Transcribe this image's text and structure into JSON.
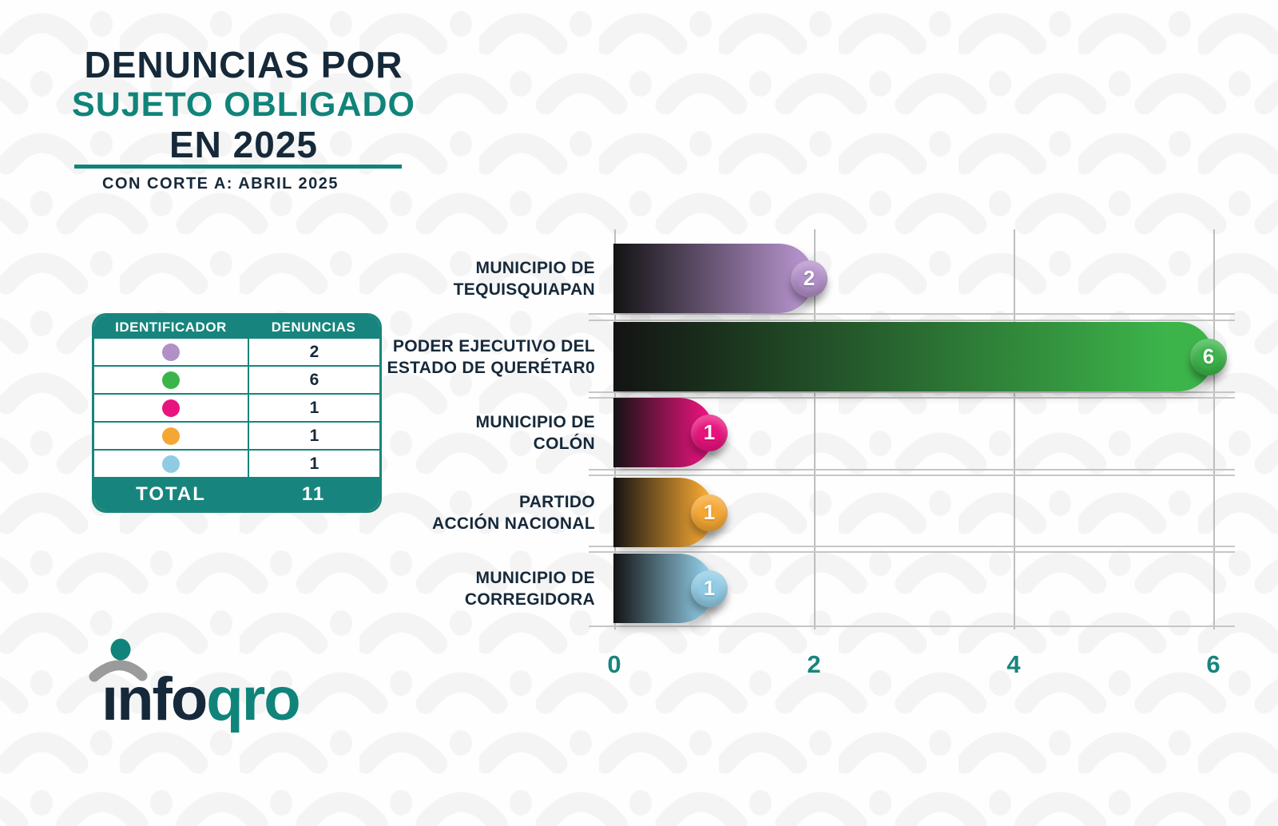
{
  "colors": {
    "navy": "#16293a",
    "teal": "#17857d",
    "title_teal": "#10847a",
    "grid_gray": "#c0c0c0",
    "bar_gradient_start": "#131313"
  },
  "header": {
    "title_line1": "DENUNCIAS POR",
    "title_line2": "SUJETO OBLIGADO",
    "title_line3": "EN 2025",
    "subtitle": "CON CORTE A: ABRIL 2025"
  },
  "legend_table": {
    "col1_header": "IDENTIFICADOR",
    "col2_header": "DENUNCIAS",
    "rows": [
      {
        "color": "#b18fc7",
        "value": "2"
      },
      {
        "color": "#3cb44a",
        "value": "6"
      },
      {
        "color": "#e8137d",
        "value": "1"
      },
      {
        "color": "#f5a733",
        "value": "1"
      },
      {
        "color": "#90cbe4",
        "value": "1"
      }
    ],
    "total_label": "TOTAL",
    "total_value": "11"
  },
  "chart_data": {
    "type": "bar",
    "orientation": "horizontal",
    "title": "DENUNCIAS POR SUJETO OBLIGADO EN 2025",
    "subtitle": "CON CORTE A: ABRIL 2025",
    "categories": [
      "MUNICIPIO DE TEQUISQUIAPAN",
      "PODER EJECUTIVO DEL ESTADO DE QUERÉTAR0",
      "MUNICIPIO DE COLÓN",
      "PARTIDO ACCIÓN NACIONAL",
      "MUNICIPIO DE CORREGIDORA"
    ],
    "category_label_lines": [
      [
        "MUNICIPIO DE",
        "TEQUISQUIAPAN"
      ],
      [
        "PODER EJECUTIVO DEL",
        "ESTADO DE QUERÉTAR0"
      ],
      [
        "MUNICIPIO DE",
        "COLÓN"
      ],
      [
        "PARTIDO",
        "ACCIÓN NACIONAL"
      ],
      [
        "MUNICIPIO DE",
        "CORREGIDORA"
      ]
    ],
    "values": [
      2,
      6,
      1,
      1,
      1
    ],
    "bar_colors": [
      "#b18fc7",
      "#3cb44a",
      "#e8137d",
      "#f5a733",
      "#90cbe4"
    ],
    "x_ticks": [
      "0",
      "2",
      "4",
      "6"
    ],
    "xlim": [
      0,
      6
    ],
    "grid": true,
    "legend_position": "left-table",
    "total": 11
  },
  "logo": {
    "part1": "info",
    "part2": "qro"
  }
}
